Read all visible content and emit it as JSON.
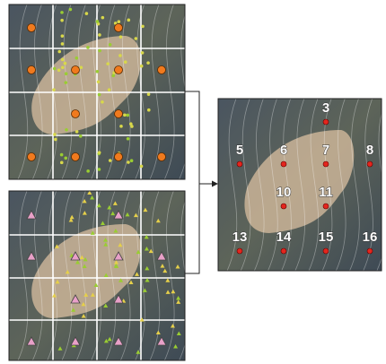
{
  "nodes": [
    {
      "label": "3"
    },
    {
      "label": "5"
    },
    {
      "label": "6"
    },
    {
      "label": "7"
    },
    {
      "label": "8"
    },
    {
      "label": "10"
    },
    {
      "label": "11"
    },
    {
      "label": "13"
    },
    {
      "label": "14"
    },
    {
      "label": "15"
    },
    {
      "label": "16"
    }
  ]
}
